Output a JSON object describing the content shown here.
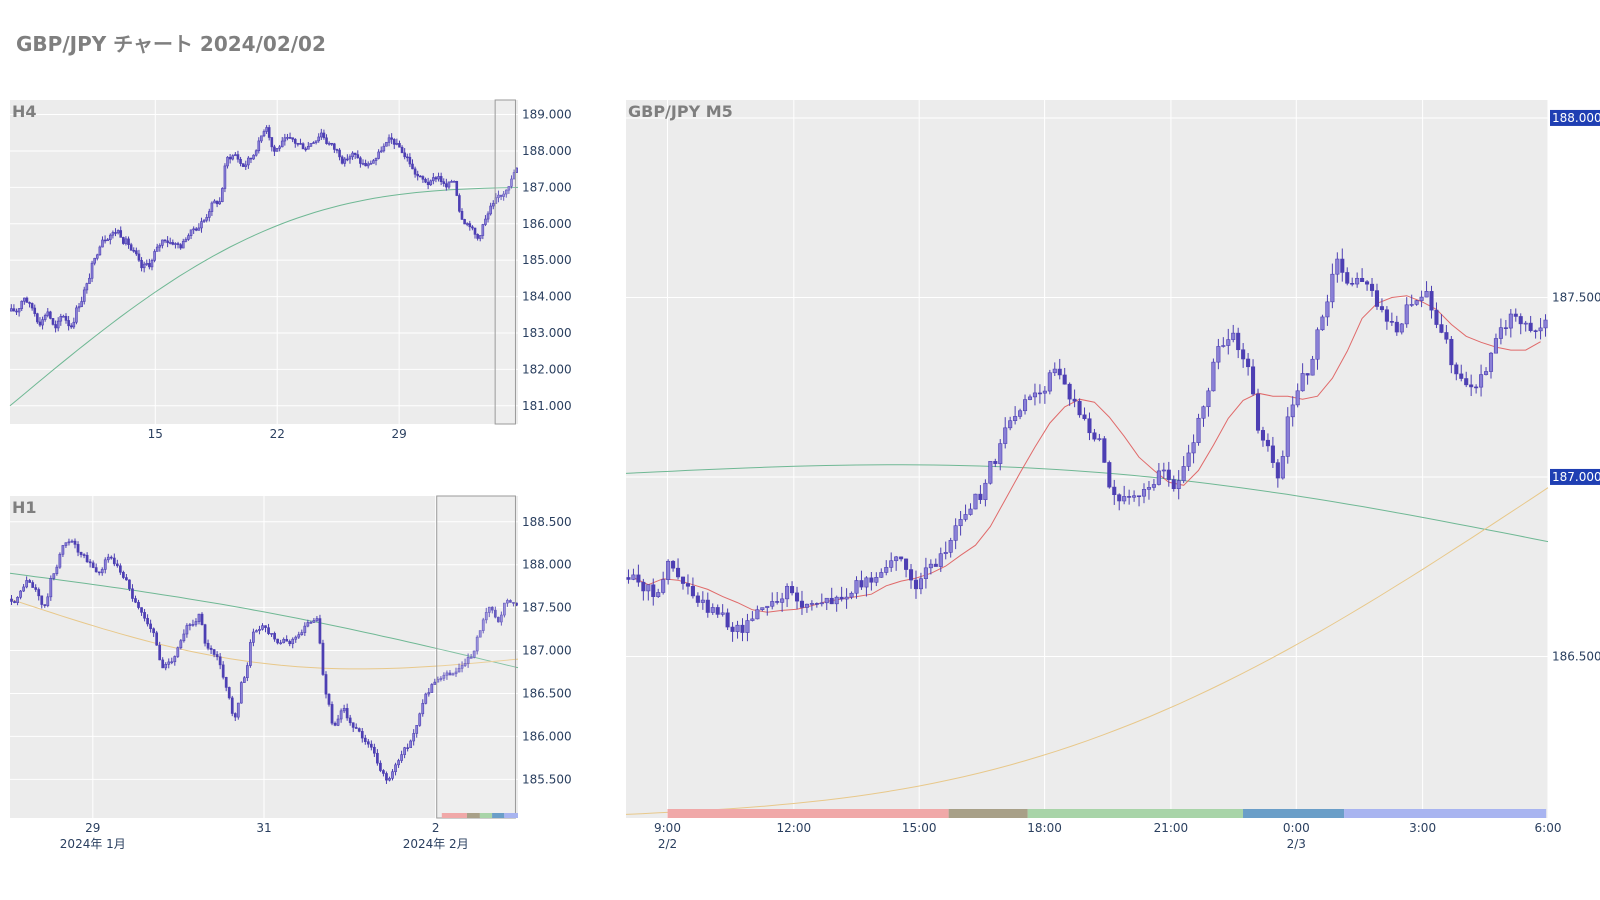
{
  "title": "GBP/JPY チャート 2024/02/02",
  "colors": {
    "candle": "#4d3fb3",
    "candle_fill": "#8a80d6",
    "ma_green": "#6fb894",
    "ma_red": "#e06a6a",
    "ma_yellow": "#e8c88a",
    "plot_bg": "#ececec",
    "grid": "#ffffff",
    "badge": "#1f3fb3",
    "sessions": [
      "#f0a8a8",
      "#a8a088",
      "#a8d4a8",
      "#6a9ec8",
      "#a8b4f0"
    ]
  },
  "chart_data": [
    {
      "type": "candlestick",
      "title": "H4",
      "ylim": [
        180.5,
        189.4
      ],
      "y_ticks": [
        "189.000",
        "188.000",
        "187.000",
        "186.000",
        "185.000",
        "184.000",
        "183.000",
        "182.000",
        "181.000"
      ],
      "y_tick_values": [
        189,
        188,
        187,
        186,
        185,
        184,
        183,
        182,
        181
      ],
      "x_ticks": [
        "15",
        "22",
        "29"
      ],
      "x_tick_positions": [
        0.286,
        0.526,
        0.766
      ],
      "grid": true,
      "closes": [
        183.6,
        184.0,
        183.7,
        183.3,
        183.6,
        183.1,
        183.5,
        183.2,
        183.8,
        184.3,
        185.0,
        185.6,
        185.7,
        185.8,
        185.5,
        185.2,
        184.8,
        184.9,
        185.3,
        185.6,
        185.5,
        185.4,
        185.7,
        185.9,
        186.1,
        186.5,
        186.6,
        187.8,
        187.9,
        187.6,
        187.8,
        188.2,
        188.7,
        188.0,
        188.2,
        188.3,
        188.2,
        188.1,
        188.3,
        188.5,
        188.2,
        188.0,
        187.7,
        187.9,
        187.7,
        187.6,
        187.8,
        188.1,
        188.3,
        188.1,
        187.8,
        187.4,
        187.2,
        187.1,
        187.3,
        187.0,
        187.2,
        186.2,
        186.0,
        185.6,
        186.1,
        186.5,
        186.8,
        187.1,
        187.5
      ],
      "ma": {
        "name": "",
        "from": 181.0,
        "to": 187.0
      },
      "selection_window": {
        "from": 0.955,
        "to": 0.995
      }
    },
    {
      "type": "candlestick",
      "title": "H1",
      "ylim": [
        185.05,
        188.8
      ],
      "y_ticks": [
        "188.500",
        "188.000",
        "187.500",
        "187.000",
        "186.500",
        "186.000",
        "185.500"
      ],
      "y_tick_values": [
        188.5,
        188.0,
        187.5,
        187.0,
        186.5,
        186.0,
        185.5
      ],
      "x_ticks": [
        "29",
        "31",
        "2"
      ],
      "x_subticks": [
        "2024年 1月",
        "",
        "2024年 2月"
      ],
      "x_tick_positions": [
        0.163,
        0.5,
        0.838
      ],
      "grid": true,
      "closes": [
        187.6,
        187.8,
        187.7,
        187.5,
        187.9,
        188.2,
        188.3,
        188.1,
        188.0,
        187.9,
        188.1,
        188.0,
        187.8,
        187.6,
        187.4,
        187.2,
        186.8,
        186.9,
        187.1,
        187.3,
        187.4,
        187.0,
        186.9,
        186.6,
        186.2,
        186.7,
        187.2,
        187.3,
        187.2,
        187.1,
        187.1,
        187.2,
        187.3,
        187.4,
        186.5,
        186.1,
        186.3,
        186.1,
        186.0,
        185.9,
        185.6,
        185.5,
        185.7,
        185.9,
        186.1,
        186.5,
        186.6,
        186.7,
        186.7,
        186.8,
        186.9,
        187.2,
        187.5,
        187.3,
        187.6,
        187.5
      ],
      "ma_green": {
        "name": "",
        "from": 187.9,
        "to": 186.8
      },
      "ma_yellow": {
        "name": "",
        "from": 187.6,
        "to": 186.9
      },
      "selection_window": {
        "from": 0.84,
        "to": 0.995
      }
    },
    {
      "type": "candlestick",
      "title": "GBP/JPY M5",
      "ylim": [
        186.05,
        188.05
      ],
      "y_ticks": [
        "188.000",
        "187.500",
        "187.000",
        "186.500"
      ],
      "y_tick_values": [
        188.0,
        187.5,
        187.0,
        186.5
      ],
      "highlighted_ticks": [
        "188.000",
        "187.000"
      ],
      "x_ticks": [
        "9:00",
        "12:00",
        "15:00",
        "18:00",
        "21:00",
        "0:00",
        "3:00",
        "6:00"
      ],
      "x_subticks": [
        "2/2",
        "",
        "",
        "",
        "",
        "2/3",
        "",
        ""
      ],
      "x_tick_positions": [
        0.045,
        0.182,
        0.318,
        0.454,
        0.591,
        0.727,
        0.864,
        1.0
      ],
      "grid": true,
      "closes": [
        186.72,
        186.68,
        186.75,
        186.7,
        186.65,
        186.62,
        186.6,
        186.58,
        186.63,
        186.66,
        186.68,
        186.64,
        186.66,
        186.65,
        186.67,
        186.7,
        186.72,
        186.78,
        186.74,
        186.7,
        186.75,
        186.82,
        186.9,
        186.95,
        187.05,
        187.15,
        187.2,
        187.25,
        187.3,
        187.22,
        187.18,
        187.1,
        186.95,
        186.93,
        186.95,
        187.0,
        186.98,
        187.05,
        187.2,
        187.35,
        187.4,
        187.3,
        187.1,
        187.0,
        187.2,
        187.3,
        187.45,
        187.6,
        187.55,
        187.55,
        187.45,
        187.4,
        187.48,
        187.5,
        187.42,
        187.3,
        187.25,
        187.3,
        187.4,
        187.45,
        187.42,
        187.44
      ],
      "ma_red": {
        "name": "",
        "from": 186.62,
        "to": 187.38
      },
      "ma_green": {
        "name": "",
        "from": 187.01,
        "to": 186.82
      },
      "ma_yellow": {
        "name": "",
        "from": 186.06,
        "to": 186.97
      }
    }
  ]
}
